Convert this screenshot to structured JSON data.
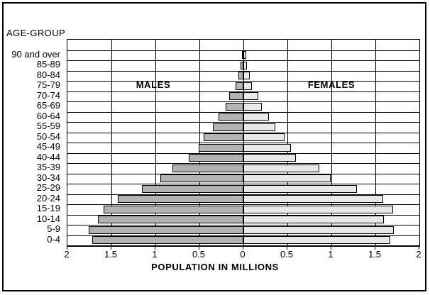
{
  "figure": {
    "y_axis_title": "AGE-GROUP",
    "x_axis_title": "POPULATION IN MILLIONS",
    "left_series_label": "MALES",
    "right_series_label": "FEMALES"
  },
  "chart_data": {
    "type": "bar",
    "subtype": "population-pyramid",
    "title": "",
    "ylabel": "AGE-GROUP",
    "xlabel": "POPULATION IN MILLIONS",
    "categories_top_to_bottom": [
      "90 and over",
      "85-89",
      "80-84",
      "75-79",
      "70-74",
      "65-69",
      "60-64",
      "55-59",
      "50-54",
      "45-49",
      "40-44",
      "35-39",
      "30-34",
      "25-29",
      "20-24",
      "15-19",
      "10-14",
      "5-9",
      "0-4"
    ],
    "series": [
      {
        "name": "MALES",
        "side": "left",
        "color": "#b3b3b3",
        "values": [
          0.02,
          0.03,
          0.06,
          0.09,
          0.16,
          0.2,
          0.28,
          0.35,
          0.45,
          0.51,
          0.62,
          0.81,
          0.94,
          1.15,
          1.43,
          1.59,
          1.65,
          1.76,
          1.72
        ]
      },
      {
        "name": "FEMALES",
        "side": "right",
        "color": "#e8e8e8",
        "values": [
          0.03,
          0.04,
          0.07,
          0.1,
          0.17,
          0.21,
          0.29,
          0.36,
          0.47,
          0.54,
          0.6,
          0.86,
          0.99,
          1.29,
          1.59,
          1.7,
          1.6,
          1.71,
          1.67
        ]
      }
    ],
    "x_ticks": [
      "2",
      "1.5",
      "1",
      "0.5",
      "0",
      "0.5",
      "1",
      "1.5",
      "2"
    ],
    "xlim_each_side": 2,
    "units": "millions",
    "grid": true,
    "legend_position": "inside-top (MALES left, FEMALES right)",
    "empty_top_row": true,
    "gridline_color": "#000000",
    "bar_border_color": "#000000",
    "background_color": "#ffffff"
  }
}
